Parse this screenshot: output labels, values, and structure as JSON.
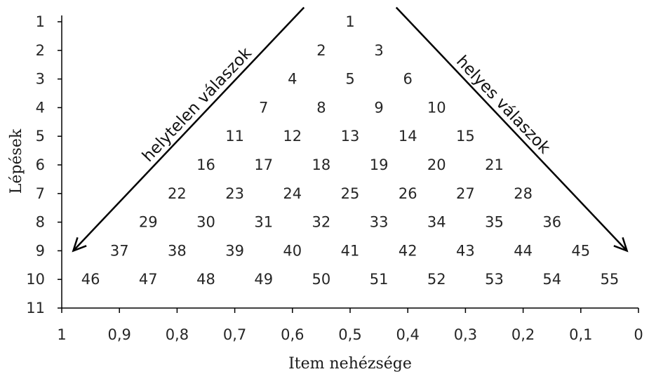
{
  "chart_data": {
    "type": "scatter",
    "xlabel": "Item nehézsége",
    "ylabel": "Lépések",
    "xlim": [
      1,
      0
    ],
    "ylim": [
      0.5,
      11
    ],
    "x_ticks": [
      "1",
      "0,9",
      "0,8",
      "0,7",
      "0,6",
      "0,5",
      "0,4",
      "0,3",
      "0,2",
      "0,1",
      "0"
    ],
    "x_tick_values": [
      1,
      0.9,
      0.8,
      0.7,
      0.6,
      0.5,
      0.4,
      0.3,
      0.2,
      0.1,
      0
    ],
    "y_ticks": [
      "1",
      "2",
      "3",
      "4",
      "5",
      "6",
      "7",
      "8",
      "9",
      "10",
      "11"
    ],
    "y_tick_values": [
      1,
      2,
      3,
      4,
      5,
      6,
      7,
      8,
      9,
      10,
      11
    ],
    "points": [
      {
        "label": "1",
        "x": 0.5,
        "y": 1
      },
      {
        "label": "2",
        "x": 0.55,
        "y": 2
      },
      {
        "label": "3",
        "x": 0.45,
        "y": 2
      },
      {
        "label": "4",
        "x": 0.6,
        "y": 3
      },
      {
        "label": "5",
        "x": 0.5,
        "y": 3
      },
      {
        "label": "6",
        "x": 0.4,
        "y": 3
      },
      {
        "label": "7",
        "x": 0.65,
        "y": 4
      },
      {
        "label": "8",
        "x": 0.55,
        "y": 4
      },
      {
        "label": "9",
        "x": 0.45,
        "y": 4
      },
      {
        "label": "10",
        "x": 0.35,
        "y": 4
      },
      {
        "label": "11",
        "x": 0.7,
        "y": 5
      },
      {
        "label": "12",
        "x": 0.6,
        "y": 5
      },
      {
        "label": "13",
        "x": 0.5,
        "y": 5
      },
      {
        "label": "14",
        "x": 0.4,
        "y": 5
      },
      {
        "label": "15",
        "x": 0.3,
        "y": 5
      },
      {
        "label": "16",
        "x": 0.75,
        "y": 6
      },
      {
        "label": "17",
        "x": 0.65,
        "y": 6
      },
      {
        "label": "18",
        "x": 0.55,
        "y": 6
      },
      {
        "label": "19",
        "x": 0.45,
        "y": 6
      },
      {
        "label": "20",
        "x": 0.35,
        "y": 6
      },
      {
        "label": "21",
        "x": 0.25,
        "y": 6
      },
      {
        "label": "22",
        "x": 0.8,
        "y": 7
      },
      {
        "label": "23",
        "x": 0.7,
        "y": 7
      },
      {
        "label": "24",
        "x": 0.6,
        "y": 7
      },
      {
        "label": "25",
        "x": 0.5,
        "y": 7
      },
      {
        "label": "26",
        "x": 0.4,
        "y": 7
      },
      {
        "label": "27",
        "x": 0.3,
        "y": 7
      },
      {
        "label": "28",
        "x": 0.2,
        "y": 7
      },
      {
        "label": "29",
        "x": 0.85,
        "y": 8
      },
      {
        "label": "30",
        "x": 0.75,
        "y": 8
      },
      {
        "label": "31",
        "x": 0.65,
        "y": 8
      },
      {
        "label": "32",
        "x": 0.55,
        "y": 8
      },
      {
        "label": "33",
        "x": 0.45,
        "y": 8
      },
      {
        "label": "34",
        "x": 0.35,
        "y": 8
      },
      {
        "label": "35",
        "x": 0.25,
        "y": 8
      },
      {
        "label": "36",
        "x": 0.15,
        "y": 8
      },
      {
        "label": "37",
        "x": 0.9,
        "y": 9
      },
      {
        "label": "38",
        "x": 0.8,
        "y": 9
      },
      {
        "label": "39",
        "x": 0.7,
        "y": 9
      },
      {
        "label": "40",
        "x": 0.6,
        "y": 9
      },
      {
        "label": "41",
        "x": 0.5,
        "y": 9
      },
      {
        "label": "42",
        "x": 0.4,
        "y": 9
      },
      {
        "label": "43",
        "x": 0.3,
        "y": 9
      },
      {
        "label": "44",
        "x": 0.2,
        "y": 9
      },
      {
        "label": "45",
        "x": 0.1,
        "y": 9
      },
      {
        "label": "46",
        "x": 0.95,
        "y": 10
      },
      {
        "label": "47",
        "x": 0.85,
        "y": 10
      },
      {
        "label": "48",
        "x": 0.75,
        "y": 10
      },
      {
        "label": "49",
        "x": 0.65,
        "y": 10
      },
      {
        "label": "50",
        "x": 0.55,
        "y": 10
      },
      {
        "label": "51",
        "x": 0.45,
        "y": 10
      },
      {
        "label": "52",
        "x": 0.35,
        "y": 10
      },
      {
        "label": "53",
        "x": 0.25,
        "y": 10
      },
      {
        "label": "54",
        "x": 0.15,
        "y": 10
      },
      {
        "label": "55",
        "x": 0.05,
        "y": 10
      }
    ],
    "annotations": [
      {
        "text": "helytelen válaszok",
        "arrow_from": [
          0.58,
          0.5
        ],
        "arrow_to": [
          0.98,
          9
        ]
      },
      {
        "text": "helyes válaszok",
        "arrow_from": [
          0.42,
          0.5
        ],
        "arrow_to": [
          0.02,
          9
        ]
      }
    ],
    "grid": false
  }
}
